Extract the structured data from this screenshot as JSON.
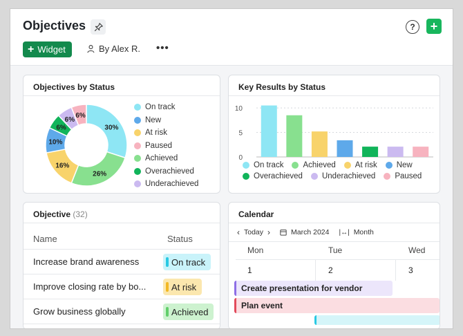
{
  "header": {
    "title": "Objectives",
    "widget_label": "Widget",
    "by_label": "By Alex R.",
    "more_label": "•••",
    "help_label": "?",
    "add_label": "+"
  },
  "colors": {
    "accent": "#18b65d",
    "widget_button": "#138a4d"
  },
  "objectives_by_status": {
    "title": "Objectives by Status",
    "legend": [
      {
        "label": "On track",
        "color": "#8ee6f4"
      },
      {
        "label": "New",
        "color": "#5ea9ea"
      },
      {
        "label": "At risk",
        "color": "#f8d36b"
      },
      {
        "label": "Paused",
        "color": "#f7b3bf"
      },
      {
        "label": "Achieved",
        "color": "#88e08f"
      },
      {
        "label": "Overachieved",
        "color": "#11b45a"
      },
      {
        "label": "Underachieved",
        "color": "#cbbaf0"
      }
    ]
  },
  "key_results_by_status": {
    "title": "Key Results by Status",
    "legend": [
      {
        "label": "On track",
        "color": "#8ee6f4"
      },
      {
        "label": "Achieved",
        "color": "#88e08f"
      },
      {
        "label": "At risk",
        "color": "#f8d36b"
      },
      {
        "label": "New",
        "color": "#5ea9ea"
      },
      {
        "label": "Overachieved",
        "color": "#11b45a"
      },
      {
        "label": "Underachieved",
        "color": "#cbbaf0"
      },
      {
        "label": "Paused",
        "color": "#f7b3bf"
      }
    ]
  },
  "chart_data": [
    {
      "type": "pie",
      "title": "Objectives by Status",
      "slices": [
        {
          "name": "On track",
          "value": 30,
          "label": "30%",
          "color": "#8ee6f4"
        },
        {
          "name": "Achieved",
          "value": 26,
          "label": "26%",
          "color": "#88e08f"
        },
        {
          "name": "At risk",
          "value": 16,
          "label": "16%",
          "color": "#f8d36b"
        },
        {
          "name": "New",
          "value": 10,
          "label": "10%",
          "color": "#5ea9ea"
        },
        {
          "name": "Overachieved",
          "value": 6,
          "label": "6%",
          "color": "#11b45a"
        },
        {
          "name": "Underachieved",
          "value": 6,
          "label": "6%",
          "color": "#cbbaf0"
        },
        {
          "name": "Paused",
          "value": 6,
          "label": "6%",
          "color": "#f7b3bf"
        }
      ]
    },
    {
      "type": "bar",
      "title": "Key Results by Status",
      "categories": [
        "On track",
        "Achieved",
        "At risk",
        "New",
        "Overachieved",
        "Underachieved",
        "Paused"
      ],
      "values": [
        10.5,
        8.5,
        5.2,
        3.4,
        2.1,
        2.1,
        2.1
      ],
      "colors": [
        "#8ee6f4",
        "#88e08f",
        "#f8d36b",
        "#5ea9ea",
        "#11b45a",
        "#cbbaf0",
        "#f7b3bf"
      ],
      "yticks": [
        "0",
        "5",
        "10"
      ],
      "ylim": [
        0,
        11
      ],
      "grid": true
    }
  ],
  "objective_table": {
    "title": "Objective",
    "count": "(32)",
    "col_name": "Name",
    "col_status": "Status",
    "rows": [
      {
        "name": "Increase brand awareness",
        "status": "On track",
        "bg": "#c9f3fa",
        "bar": "#29c9e3"
      },
      {
        "name": "Improve closing rate by bo...",
        "status": "At risk",
        "bg": "#fbe7ae",
        "bar": "#f2b824"
      },
      {
        "name": "Grow business globally",
        "status": "Achieved",
        "bg": "#cdf2cf",
        "bar": "#62cf6b"
      }
    ]
  },
  "calendar": {
    "title": "Calendar",
    "today_label": "Today",
    "month_label": "March 2024",
    "view_label": "Month",
    "days": [
      "Mon",
      "Tue",
      "Wed"
    ],
    "dates": [
      "1",
      "2",
      "3"
    ],
    "events": [
      {
        "label": "Create presentation for vendor",
        "bg": "#ece6fb",
        "bar": "#8d6ee6"
      },
      {
        "label": "Plan event",
        "bg": "#fbdde1",
        "bar": "#e24a5b"
      }
    ]
  }
}
